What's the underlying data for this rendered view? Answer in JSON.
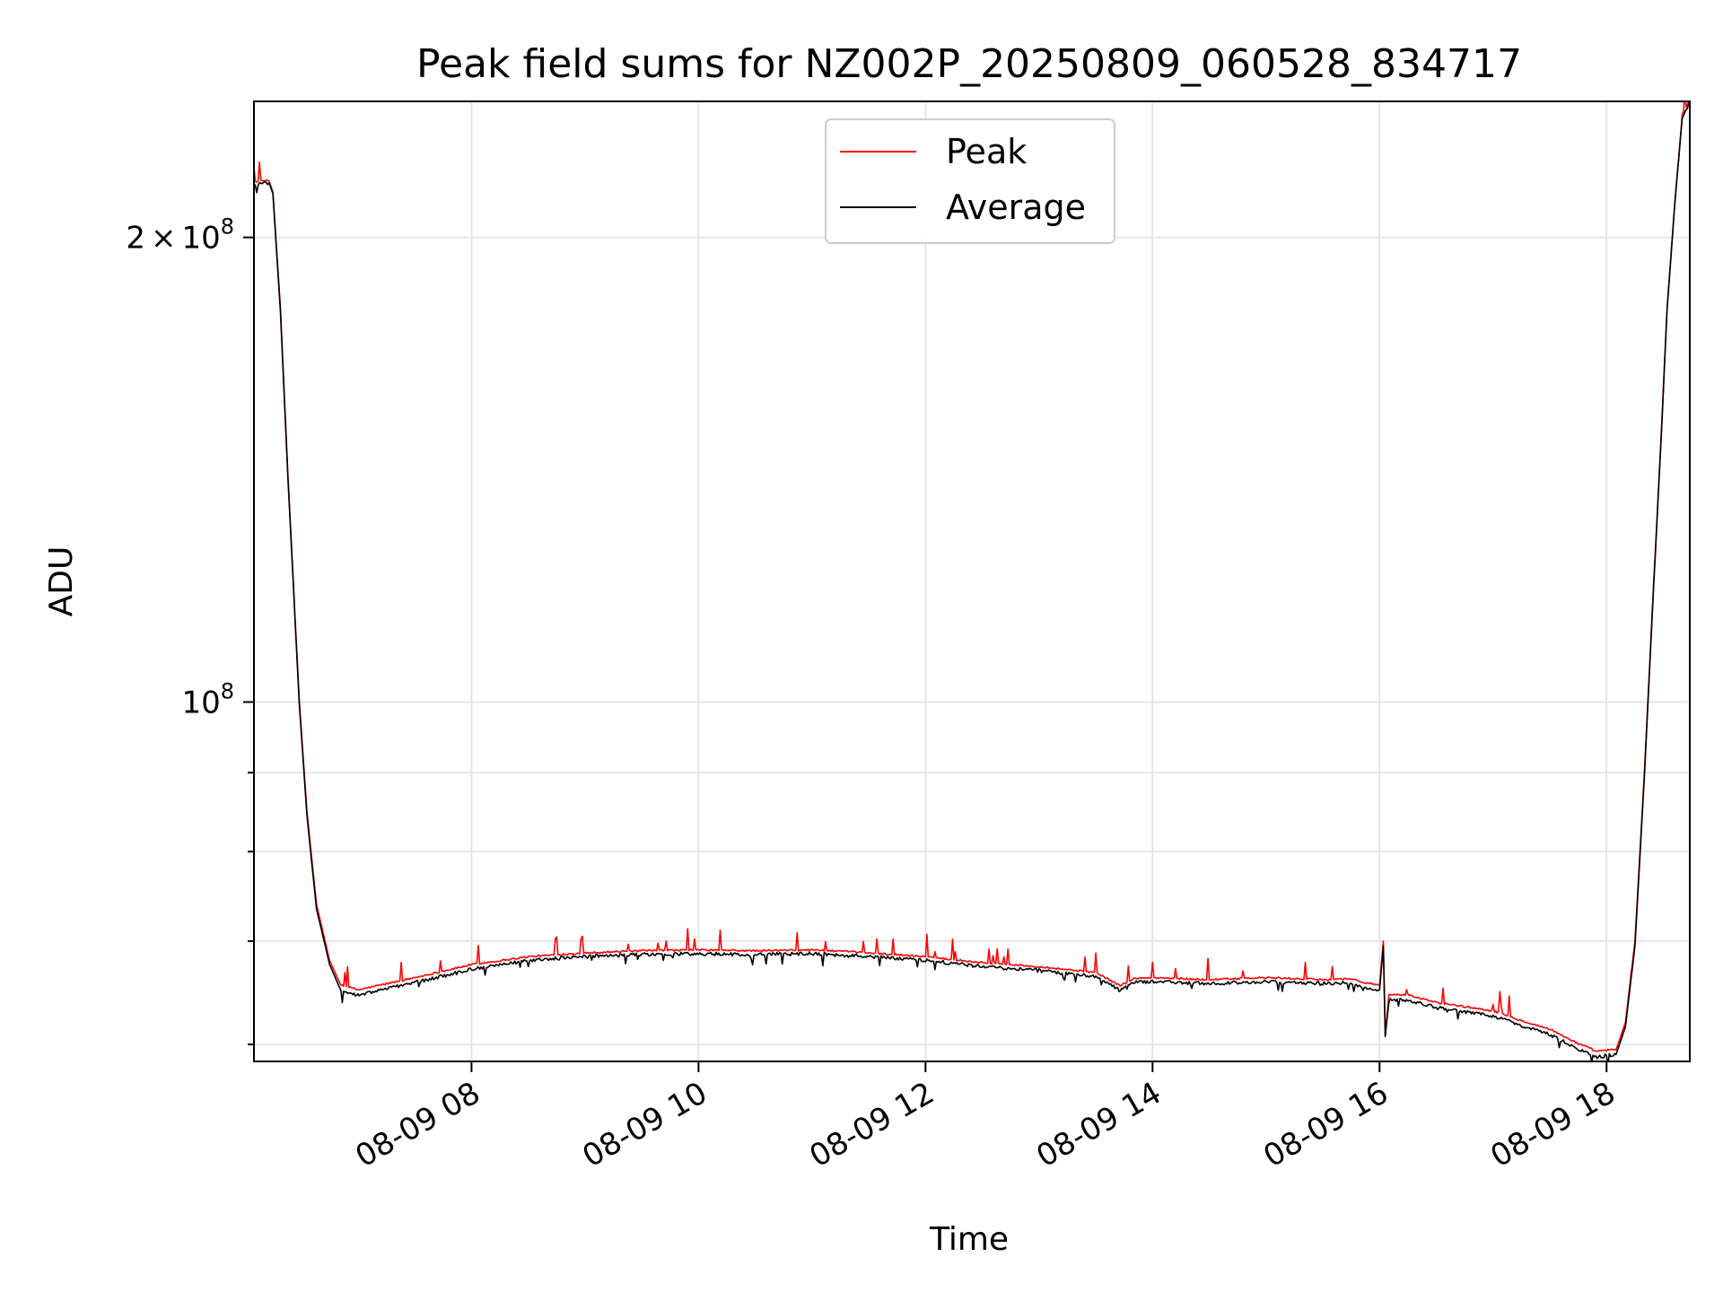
{
  "chart_data": {
    "type": "line",
    "title": "Peak field sums for NZ002P_20250809_060528_834717",
    "xlabel": "Time",
    "ylabel": "ADU",
    "x_range": [
      "2025-08-09 06:05",
      "2025-08-09 18:44"
    ],
    "y_scale": "log",
    "ylim": [
      58500000,
      245000000
    ],
    "grid": true,
    "legend_position": "upper center",
    "x_ticks": [
      {
        "time": "2025-08-09 08:00",
        "label": "08-09 08"
      },
      {
        "time": "2025-08-09 10:00",
        "label": "08-09 10"
      },
      {
        "time": "2025-08-09 12:00",
        "label": "08-09 12"
      },
      {
        "time": "2025-08-09 14:00",
        "label": "08-09 14"
      },
      {
        "time": "2025-08-09 16:00",
        "label": "08-09 16"
      },
      {
        "time": "2025-08-09 18:00",
        "label": "08-09 18"
      }
    ],
    "y_major_ticks": [
      {
        "value": 100000000,
        "base": "10",
        "exp": "8"
      },
      {
        "value": 200000000,
        "coef": "2",
        "times": "×",
        "base": "10",
        "exp": "8"
      }
    ],
    "y_minor_ticks": [
      60000000,
      70000000,
      80000000,
      90000000
    ],
    "series": [
      {
        "name": "Peak",
        "color": "#ff0000",
        "points": [
          [
            "2025-08-09 06:05",
            217000000
          ],
          [
            "2025-08-09 06:13",
            217500000
          ],
          [
            "2025-08-09 06:15",
            214000000
          ],
          [
            "2025-08-09 06:19",
            180000000
          ],
          [
            "2025-08-09 06:23",
            140000000
          ],
          [
            "2025-08-09 06:29",
            100000000
          ],
          [
            "2025-08-09 06:33",
            85000000
          ],
          [
            "2025-08-09 06:38",
            74000000
          ],
          [
            "2025-08-09 06:45",
            68000000
          ],
          [
            "2025-08-09 06:51",
            65500000
          ],
          [
            "2025-08-09 07:00",
            65000000
          ],
          [
            "2025-08-09 07:30",
            66200000
          ],
          [
            "2025-08-09 08:00",
            67500000
          ],
          [
            "2025-08-09 08:30",
            68300000
          ],
          [
            "2025-08-09 09:00",
            68700000
          ],
          [
            "2025-08-09 09:30",
            68900000
          ],
          [
            "2025-08-09 10:00",
            69000000
          ],
          [
            "2025-08-09 10:30",
            68900000
          ],
          [
            "2025-08-09 11:00",
            69000000
          ],
          [
            "2025-08-09 11:30",
            68700000
          ],
          [
            "2025-08-09 12:00",
            68300000
          ],
          [
            "2025-08-09 12:30",
            67700000
          ],
          [
            "2025-08-09 13:00",
            67300000
          ],
          [
            "2025-08-09 13:30",
            66700000
          ],
          [
            "2025-08-09 13:43",
            65400000
          ],
          [
            "2025-08-09 13:50",
            66100000
          ],
          [
            "2025-08-09 14:00",
            66200000
          ],
          [
            "2025-08-09 14:30",
            66000000
          ],
          [
            "2025-08-09 15:00",
            66200000
          ],
          [
            "2025-08-09 15:30",
            66000000
          ],
          [
            "2025-08-09 15:45",
            66100000
          ],
          [
            "2025-08-09 15:52",
            65700000
          ],
          [
            "2025-08-09 16:00",
            65500000
          ],
          [
            "2025-08-09 16:02",
            70000000
          ],
          [
            "2025-08-09 16:03",
            61000000
          ],
          [
            "2025-08-09 16:05",
            64500000
          ],
          [
            "2025-08-09 16:15",
            64500000
          ],
          [
            "2025-08-09 16:30",
            63800000
          ],
          [
            "2025-08-09 17:00",
            63000000
          ],
          [
            "2025-08-09 17:15",
            62100000
          ],
          [
            "2025-08-09 17:30",
            61300000
          ],
          [
            "2025-08-09 17:45",
            60000000
          ],
          [
            "2025-08-09 17:55",
            59300000
          ],
          [
            "2025-08-09 18:05",
            59500000
          ],
          [
            "2025-08-09 18:10",
            62000000
          ],
          [
            "2025-08-09 18:15",
            70000000
          ],
          [
            "2025-08-09 18:20",
            90000000
          ],
          [
            "2025-08-09 18:25",
            120000000
          ],
          [
            "2025-08-09 18:29",
            150000000
          ],
          [
            "2025-08-09 18:32",
            180000000
          ],
          [
            "2025-08-09 18:36",
            210000000
          ],
          [
            "2025-08-09 18:40",
            240000000
          ],
          [
            "2025-08-09 18:44",
            245000000
          ]
        ]
      },
      {
        "name": "Average",
        "color": "#000000",
        "points": [
          [
            "2025-08-09 06:05",
            216500000
          ],
          [
            "2025-08-09 06:13",
            217000000
          ],
          [
            "2025-08-09 06:15",
            213500000
          ],
          [
            "2025-08-09 06:19",
            179000000
          ],
          [
            "2025-08-09 06:23",
            139500000
          ],
          [
            "2025-08-09 06:29",
            99500000
          ],
          [
            "2025-08-09 06:33",
            84500000
          ],
          [
            "2025-08-09 06:38",
            73500000
          ],
          [
            "2025-08-09 06:45",
            67600000
          ],
          [
            "2025-08-09 06:51",
            65000000
          ],
          [
            "2025-08-09 07:00",
            64600000
          ],
          [
            "2025-08-09 07:30",
            65800000
          ],
          [
            "2025-08-09 08:00",
            67100000
          ],
          [
            "2025-08-09 08:30",
            68000000
          ],
          [
            "2025-08-09 09:00",
            68400000
          ],
          [
            "2025-08-09 09:30",
            68600000
          ],
          [
            "2025-08-09 10:00",
            68700000
          ],
          [
            "2025-08-09 10:30",
            68600000
          ],
          [
            "2025-08-09 11:00",
            68700000
          ],
          [
            "2025-08-09 11:30",
            68400000
          ],
          [
            "2025-08-09 12:00",
            68000000
          ],
          [
            "2025-08-09 12:30",
            67400000
          ],
          [
            "2025-08-09 13:00",
            67000000
          ],
          [
            "2025-08-09 13:30",
            66400000
          ],
          [
            "2025-08-09 13:43",
            65000000
          ],
          [
            "2025-08-09 13:50",
            65800000
          ],
          [
            "2025-08-09 14:00",
            65900000
          ],
          [
            "2025-08-09 14:30",
            65700000
          ],
          [
            "2025-08-09 15:00",
            65900000
          ],
          [
            "2025-08-09 15:30",
            65700000
          ],
          [
            "2025-08-09 15:45",
            65800000
          ],
          [
            "2025-08-09 15:52",
            65300000
          ],
          [
            "2025-08-09 16:00",
            65100000
          ],
          [
            "2025-08-09 16:02",
            69500000
          ],
          [
            "2025-08-09 16:03",
            60700000
          ],
          [
            "2025-08-09 16:05",
            64100000
          ],
          [
            "2025-08-09 16:15",
            64100000
          ],
          [
            "2025-08-09 16:30",
            63400000
          ],
          [
            "2025-08-09 17:00",
            62600000
          ],
          [
            "2025-08-09 17:15",
            61700000
          ],
          [
            "2025-08-09 17:30",
            60900000
          ],
          [
            "2025-08-09 17:45",
            59600000
          ],
          [
            "2025-08-09 17:55",
            58900000
          ],
          [
            "2025-08-09 18:05",
            59100000
          ],
          [
            "2025-08-09 18:10",
            61600000
          ],
          [
            "2025-08-09 18:15",
            69500000
          ],
          [
            "2025-08-09 18:20",
            89500000
          ],
          [
            "2025-08-09 18:25",
            119500000
          ],
          [
            "2025-08-09 18:29",
            149500000
          ],
          [
            "2025-08-09 18:32",
            179500000
          ],
          [
            "2025-08-09 18:36",
            209500000
          ],
          [
            "2025-08-09 18:40",
            239500000
          ],
          [
            "2025-08-09 18:44",
            244500000
          ]
        ]
      }
    ]
  }
}
